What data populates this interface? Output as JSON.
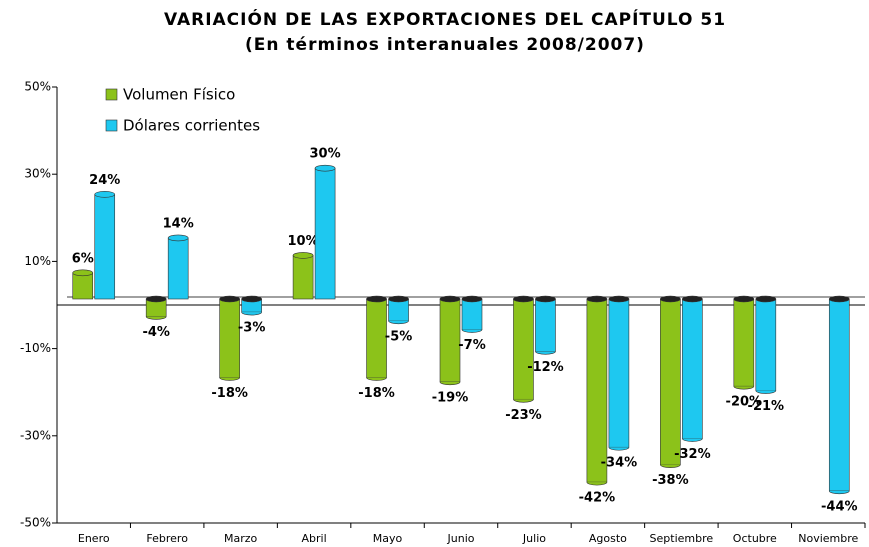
{
  "chart_data": {
    "type": "bar",
    "title": "VARIACIÓN DE LAS EXPORTACIONES DEL CAPÍTULO 51",
    "subtitle": "(En términos interanuales 2008/2007)",
    "categories": [
      "Enero",
      "Febrero",
      "Marzo",
      "Abril",
      "Mayo",
      "Junio",
      "Julio",
      "Agosto",
      "Septiembre",
      "Octubre",
      "Noviembre"
    ],
    "series": [
      {
        "name": "Volumen Físico",
        "color": "#8cc21a",
        "values": [
          6,
          -4,
          -18,
          10,
          -18,
          -19,
          -23,
          -42,
          -38,
          -20,
          null
        ],
        "value_labels": [
          "6%",
          "-4%",
          "-18%",
          "10%",
          "-18%",
          "-19%",
          "-23%",
          "-42%",
          "-38%",
          "-20%",
          null
        ]
      },
      {
        "name": "Dólares corrientes",
        "color": "#1ec8f0",
        "values": [
          24,
          14,
          -3,
          30,
          -5,
          -7,
          -12,
          -34,
          -32,
          -21,
          -44
        ],
        "value_labels": [
          "24%",
          "14%",
          "-3%",
          "30%",
          "-5%",
          "-7%",
          "-12%",
          "-34%",
          "-32%",
          "-21%",
          "-44%"
        ]
      }
    ],
    "ylim": [
      -50,
      50
    ],
    "yticks": [
      {
        "value": -50,
        "label": "-50%"
      },
      {
        "value": -30,
        "label": "-30%"
      },
      {
        "value": -10,
        "label": "-10%"
      },
      {
        "value": 10,
        "label": "10%"
      },
      {
        "value": 30,
        "label": "30%"
      },
      {
        "value": 50,
        "label": "50%"
      }
    ],
    "legend": "upper left"
  }
}
